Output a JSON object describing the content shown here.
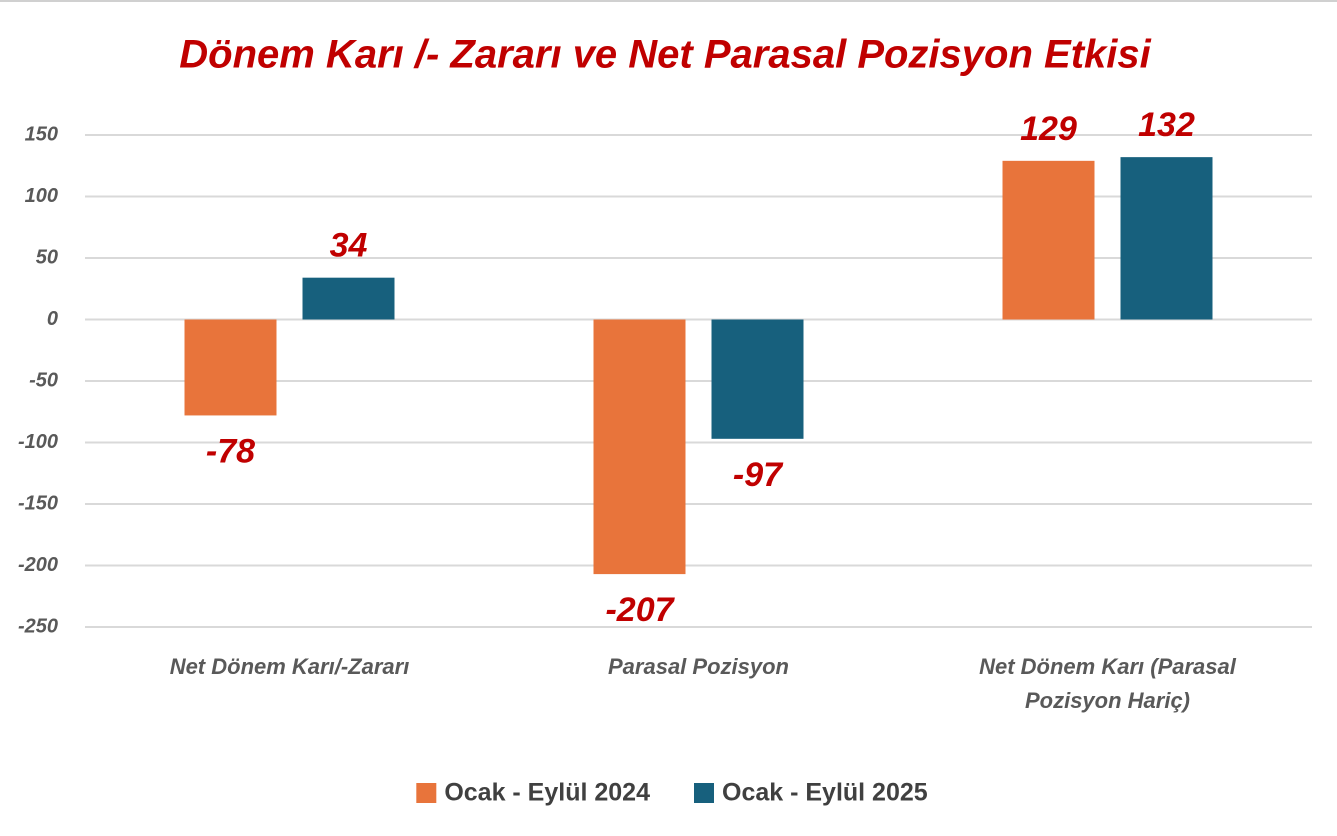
{
  "chart_data": {
    "type": "bar",
    "title": "Dönem Karı /- Zararı  ve Net Parasal  Pozisyon Etkisi",
    "categories": [
      "Net Dönem Karı/-Zararı",
      "Parasal Pozisyon",
      "Net Dönem Karı (Parasal Pozisyon Hariç)"
    ],
    "series": [
      {
        "name": "Ocak - Eylül 2024",
        "color": "#E8743B",
        "values": [
          -78,
          -207,
          129
        ]
      },
      {
        "name": "Ocak - Eylül 2025",
        "color": "#17607D",
        "values": [
          34,
          -97,
          132
        ]
      }
    ],
    "ylim": [
      -250,
      150
    ],
    "yticks": [
      -250,
      -200,
      -150,
      -100,
      -50,
      0,
      50,
      100,
      150
    ],
    "grid": true,
    "legend": "bottom"
  }
}
